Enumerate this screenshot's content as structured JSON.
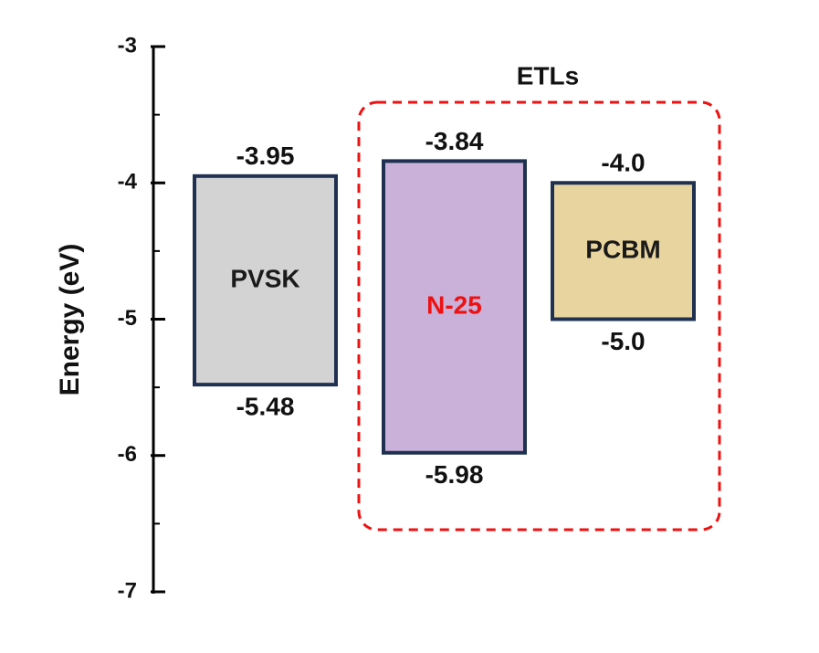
{
  "chart_data": {
    "type": "floating-bar",
    "ylabel": "Energy (eV)",
    "categories": [
      "PVSK",
      "N-25",
      "PCBM"
    ],
    "category_label_colors": [
      "#1a1a1a",
      "#ee1111",
      "#1a1a1a"
    ],
    "colors": [
      "#d3d3d3",
      "#c9b1d9",
      "#e8d49e"
    ],
    "tops": {
      "values": [
        -3.95,
        -3.84,
        -4
      ],
      "value_labels": [
        "-3.95",
        "-3.84",
        "-4.0"
      ]
    },
    "bottoms": {
      "values": [
        -5.48,
        -5.98,
        -5
      ],
      "value_labels": [
        "-5.48",
        "-5.98",
        "-5.0"
      ]
    },
    "ylim": [
      -7,
      -3
    ],
    "yticks": [
      -3,
      -4,
      -5,
      -6,
      -7
    ],
    "minor_yticks": [
      -3.5,
      -4.5,
      -5.5,
      -6.5
    ],
    "annotation": {
      "text": "ETLs",
      "color": "#ee1111"
    }
  }
}
